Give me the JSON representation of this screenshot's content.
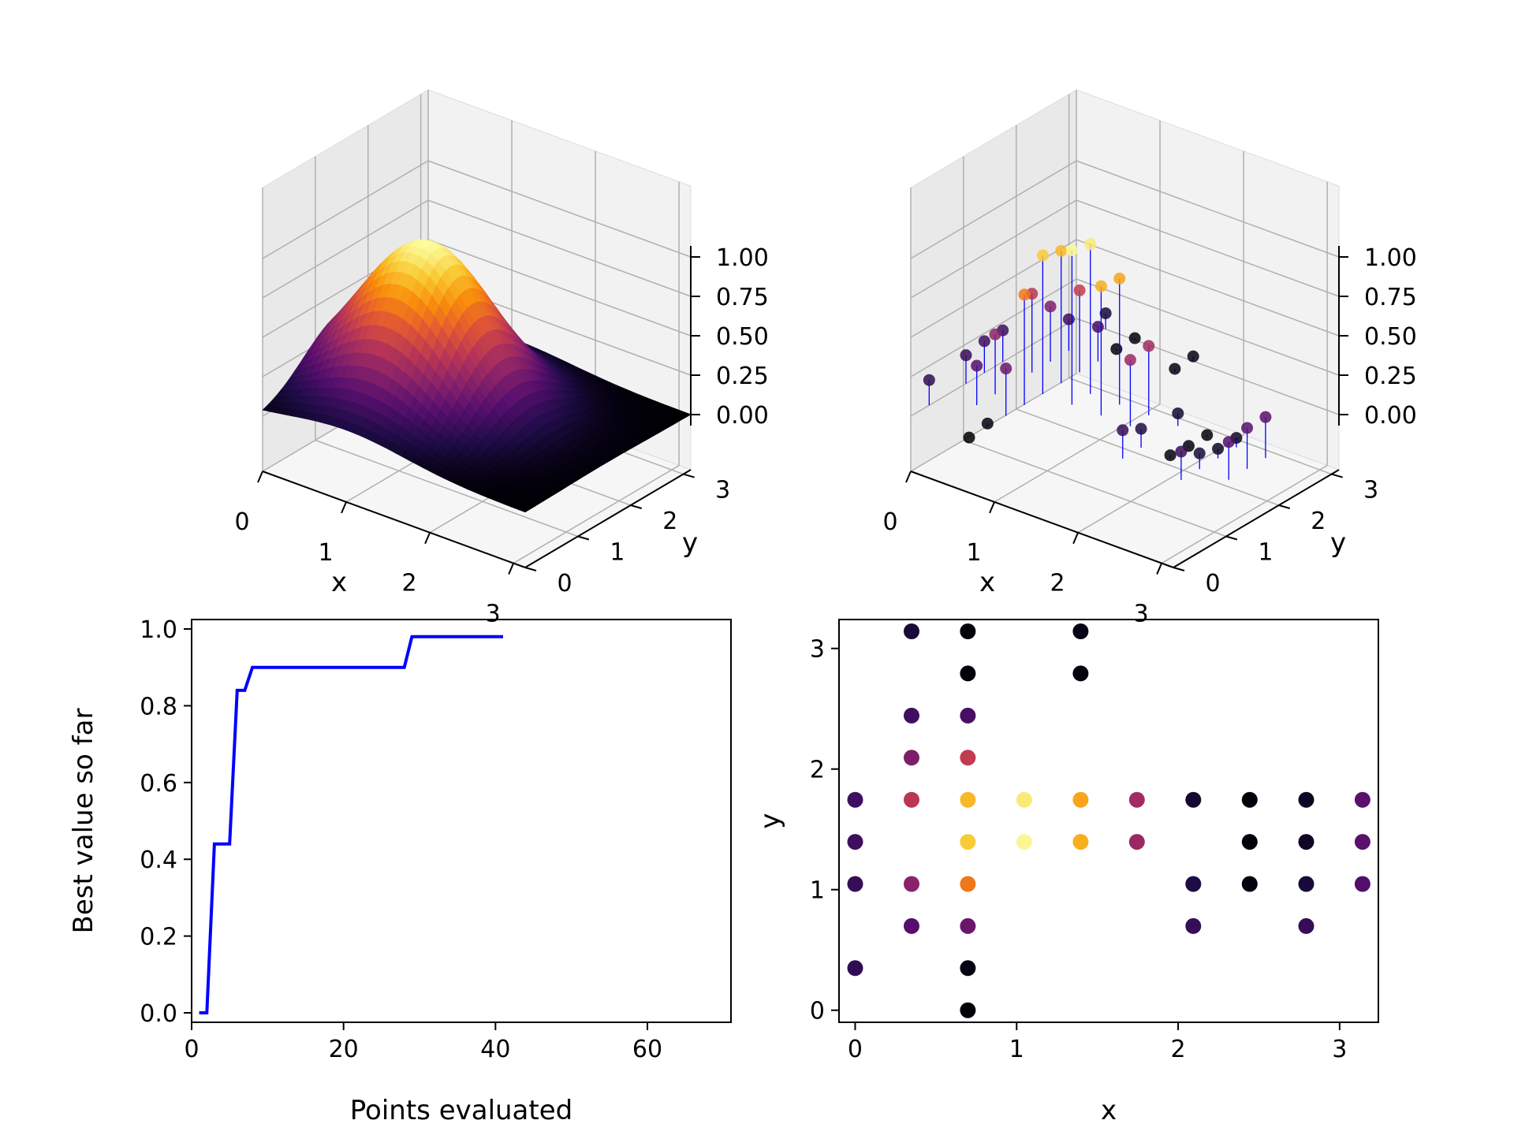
{
  "chart_data": [
    {
      "type": "surface3d",
      "xlabel": "x",
      "ylabel": "y",
      "zlabel": "",
      "xticks": [
        "0",
        "1",
        "2",
        "3"
      ],
      "yticks": [
        "0",
        "1",
        "2",
        "3"
      ],
      "zticks": [
        "0.00",
        "0.25",
        "0.50",
        "0.75",
        "1.00"
      ],
      "xlim": [
        0,
        3.14
      ],
      "ylim": [
        0,
        3.14
      ],
      "zlim": [
        0,
        1
      ],
      "colormap": "inferno",
      "function": "z = exp(-((x-1)^2 + (y-1.5)^2))",
      "peak": {
        "x": 1.0,
        "y": 1.5,
        "z": 1.0
      },
      "grid": true
    },
    {
      "type": "scatter3d_stem",
      "xlabel": "x",
      "ylabel": "y",
      "zlabel": "",
      "xticks": [
        "0",
        "1",
        "2",
        "3"
      ],
      "yticks": [
        "0",
        "1",
        "2",
        "3"
      ],
      "zticks": [
        "0.00",
        "0.25",
        "0.50",
        "0.75",
        "1.00"
      ],
      "xlim": [
        0,
        3.14
      ],
      "ylim": [
        0,
        3.14
      ],
      "zlim": [
        0,
        1
      ],
      "colormap": "inferno",
      "stem_color": "#0000ff",
      "grid": true
    },
    {
      "type": "line",
      "xlabel": "Points evaluated",
      "ylabel": "Best value so far",
      "xticks": [
        "0",
        "20",
        "40",
        "60"
      ],
      "yticks": [
        "0.0",
        "0.2",
        "0.4",
        "0.6",
        "0.8",
        "1.0"
      ],
      "xlim": [
        0,
        71
      ],
      "ylim": [
        0,
        1.0
      ],
      "color": "#0000ff",
      "series": [
        {
          "x": [
            1,
            2,
            3,
            4,
            5,
            6,
            7,
            8,
            9,
            10,
            11,
            12,
            13,
            14,
            15,
            16,
            17,
            18,
            19,
            20,
            21,
            22,
            23,
            24,
            25,
            26,
            27,
            28,
            29,
            30,
            31,
            32,
            33,
            34,
            35,
            36,
            37,
            38,
            39,
            40,
            41
          ],
          "values": [
            0.0,
            0.0,
            0.44,
            0.44,
            0.44,
            0.84,
            0.84,
            0.9,
            0.9,
            0.9,
            0.9,
            0.9,
            0.9,
            0.9,
            0.9,
            0.9,
            0.9,
            0.9,
            0.9,
            0.9,
            0.9,
            0.9,
            0.9,
            0.9,
            0.9,
            0.9,
            0.9,
            0.9,
            0.98,
            0.98,
            0.98,
            0.98,
            0.98,
            0.98,
            0.98,
            0.98,
            0.98,
            0.98,
            0.98,
            0.98,
            0.98
          ]
        }
      ]
    },
    {
      "type": "scatter",
      "xlabel": "x",
      "ylabel": "y",
      "xticks": [
        "0",
        "1",
        "2",
        "3"
      ],
      "yticks": [
        "0",
        "1",
        "2",
        "3"
      ],
      "xlim": [
        -0.1,
        3.24
      ],
      "ylim": [
        -0.1,
        3.24
      ],
      "colormap": "inferno",
      "points": [
        {
          "x": 0.0,
          "y": 1.745,
          "z": 0.2
        },
        {
          "x": 0.0,
          "y": 1.396,
          "z": 0.2
        },
        {
          "x": 0.0,
          "y": 1.047,
          "z": 0.18
        },
        {
          "x": 0.0,
          "y": 0.349,
          "z": 0.16
        },
        {
          "x": 0.349,
          "y": 3.142,
          "z": 0.1
        },
        {
          "x": 0.349,
          "y": 2.443,
          "z": 0.2
        },
        {
          "x": 0.349,
          "y": 2.094,
          "z": 0.35
        },
        {
          "x": 0.349,
          "y": 1.745,
          "z": 0.5
        },
        {
          "x": 0.349,
          "y": 1.047,
          "z": 0.38
        },
        {
          "x": 0.349,
          "y": 0.698,
          "z": 0.25
        },
        {
          "x": 0.698,
          "y": 3.142,
          "z": 0.01
        },
        {
          "x": 0.698,
          "y": 2.793,
          "z": 0.01
        },
        {
          "x": 0.698,
          "y": 2.443,
          "z": 0.22
        },
        {
          "x": 0.698,
          "y": 2.094,
          "z": 0.52
        },
        {
          "x": 0.698,
          "y": 1.745,
          "z": 0.84
        },
        {
          "x": 0.698,
          "y": 1.396,
          "z": 0.88
        },
        {
          "x": 0.698,
          "y": 1.047,
          "z": 0.7
        },
        {
          "x": 0.698,
          "y": 0.698,
          "z": 0.3
        },
        {
          "x": 0.698,
          "y": 0.349,
          "z": 0.02
        },
        {
          "x": 0.698,
          "y": 0.0,
          "z": 0.0
        },
        {
          "x": 1.047,
          "y": 1.745,
          "z": 0.95
        },
        {
          "x": 1.047,
          "y": 1.396,
          "z": 0.98
        },
        {
          "x": 1.396,
          "y": 3.142,
          "z": 0.03
        },
        {
          "x": 1.396,
          "y": 2.793,
          "z": 0.02
        },
        {
          "x": 1.396,
          "y": 1.745,
          "z": 0.8
        },
        {
          "x": 1.396,
          "y": 1.396,
          "z": 0.82
        },
        {
          "x": 1.745,
          "y": 1.745,
          "z": 0.44
        },
        {
          "x": 1.745,
          "y": 1.396,
          "z": 0.42
        },
        {
          "x": 2.094,
          "y": 1.745,
          "z": 0.08
        },
        {
          "x": 2.094,
          "y": 1.047,
          "z": 0.12
        },
        {
          "x": 2.094,
          "y": 0.698,
          "z": 0.18
        },
        {
          "x": 2.443,
          "y": 1.745,
          "z": 0.01
        },
        {
          "x": 2.443,
          "y": 1.396,
          "z": 0.01
        },
        {
          "x": 2.443,
          "y": 1.047,
          "z": 0.02
        },
        {
          "x": 2.793,
          "y": 1.745,
          "z": 0.06
        },
        {
          "x": 2.793,
          "y": 1.396,
          "z": 0.06
        },
        {
          "x": 2.793,
          "y": 1.047,
          "z": 0.1
        },
        {
          "x": 2.793,
          "y": 0.698,
          "z": 0.18
        },
        {
          "x": 3.142,
          "y": 1.745,
          "z": 0.26
        },
        {
          "x": 3.142,
          "y": 1.396,
          "z": 0.26
        },
        {
          "x": 3.142,
          "y": 1.047,
          "z": 0.24
        }
      ]
    }
  ]
}
